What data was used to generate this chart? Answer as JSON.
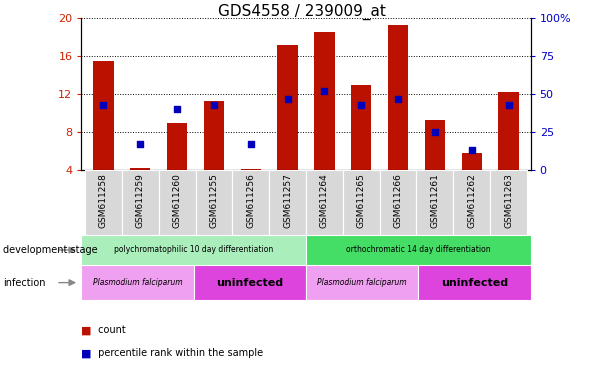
{
  "title": "GDS4558 / 239009_at",
  "samples": [
    "GSM611258",
    "GSM611259",
    "GSM611260",
    "GSM611255",
    "GSM611256",
    "GSM611257",
    "GSM611264",
    "GSM611265",
    "GSM611266",
    "GSM611261",
    "GSM611262",
    "GSM611263"
  ],
  "count_values": [
    15.5,
    4.2,
    9.0,
    11.3,
    4.1,
    17.2,
    18.5,
    13.0,
    19.3,
    9.3,
    5.8,
    12.2
  ],
  "percentile_values": [
    43,
    17,
    40,
    43,
    17,
    47,
    52,
    43,
    47,
    25,
    13,
    43
  ],
  "bar_bottom": 4,
  "ylim_left": [
    4,
    20
  ],
  "ylim_right": [
    0,
    100
  ],
  "left_yticks": [
    4,
    8,
    12,
    16,
    20
  ],
  "right_yticks": [
    0,
    25,
    50,
    75,
    100
  ],
  "right_yticklabels": [
    "0",
    "25",
    "50",
    "75",
    "100%"
  ],
  "bar_color": "#bb1100",
  "dot_color": "#0000bb",
  "bar_width": 0.55,
  "development_stage_label": "development stage",
  "infection_label": "infection",
  "dev_stage_groups": [
    {
      "label": "polychromatophilic 10 day differentiation",
      "start": 0,
      "end": 5,
      "color": "#aaeebb"
    },
    {
      "label": "orthochromatic 14 day differentiation",
      "start": 6,
      "end": 11,
      "color": "#44dd66"
    }
  ],
  "infection_groups": [
    {
      "label": "Plasmodium falciparum",
      "start": 0,
      "end": 2,
      "color": "#f0a0f0",
      "fontsize": 5.5,
      "italic": true,
      "bold": false
    },
    {
      "label": "uninfected",
      "start": 3,
      "end": 5,
      "color": "#dd44dd",
      "fontsize": 8,
      "italic": false,
      "bold": true
    },
    {
      "label": "Plasmodium falciparum",
      "start": 6,
      "end": 8,
      "color": "#f0a0f0",
      "fontsize": 5.5,
      "italic": true,
      "bold": false
    },
    {
      "label": "uninfected",
      "start": 9,
      "end": 11,
      "color": "#dd44dd",
      "fontsize": 8,
      "italic": false,
      "bold": true
    }
  ],
  "legend_count_color": "#bb1100",
  "legend_pct_color": "#0000bb",
  "title_fontsize": 11,
  "axis_color_left": "#cc2200",
  "axis_color_right": "#0000cc",
  "plot_bg": "#ffffff",
  "fig_bg": "#ffffff"
}
